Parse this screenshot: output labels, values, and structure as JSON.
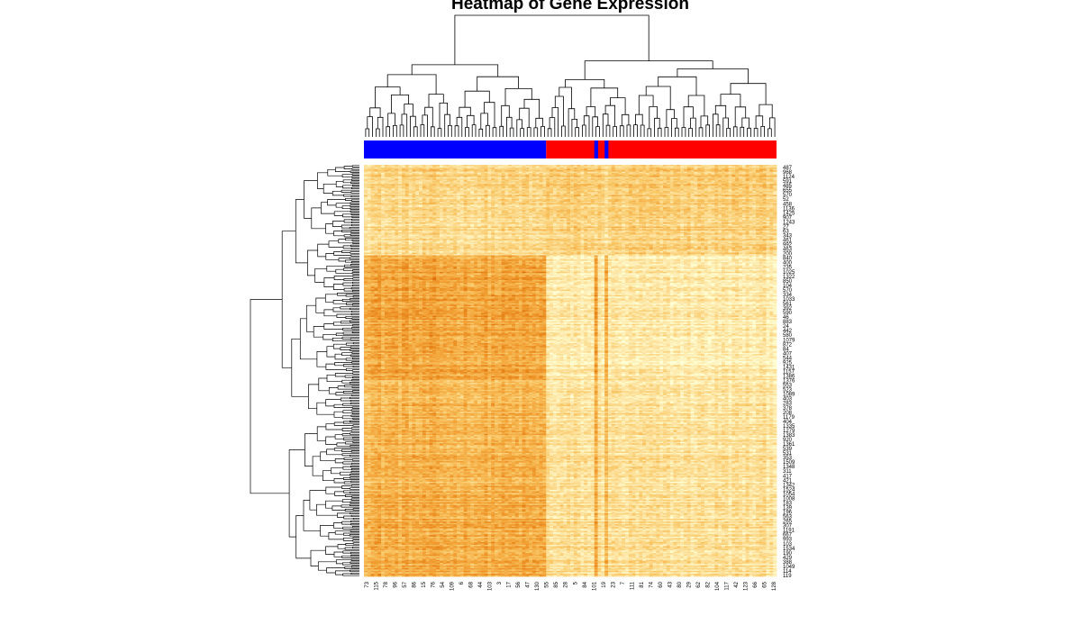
{
  "chart_data": {
    "type": "heatmap",
    "title": "Heatmap of Gene Expression",
    "column_labels": [
      "73",
      "115",
      "78",
      "96",
      "57",
      "86",
      "15",
      "76",
      "54",
      "109",
      "6",
      "68",
      "44",
      "103",
      "3",
      "17",
      "56",
      "47",
      "130",
      "55",
      "85",
      "28",
      "5",
      "84",
      "101",
      "19",
      "23",
      "7",
      "111",
      "81",
      "74",
      "60",
      "43",
      "80",
      "29",
      "62",
      "82",
      "104",
      "117",
      "42",
      "123",
      "66",
      "65",
      "128"
    ],
    "row_labels": [
      "487",
      "968",
      "1124",
      "591",
      "485",
      "655",
      "570",
      "52",
      "458",
      "1136",
      "1425",
      "907",
      "1243",
      "27",
      "63",
      "343",
      "461",
      "992",
      "463",
      "200",
      "840",
      "400",
      "235",
      "1025",
      "1322",
      "850",
      "104",
      "570",
      "334",
      "1033",
      "561",
      "392",
      "590",
      "46",
      "883",
      "24",
      "442",
      "580",
      "1079",
      "872",
      "84",
      "407",
      "544",
      "925",
      "1431",
      "1157",
      "1386",
      "1376",
      "553",
      "523",
      "1089",
      "403",
      "283",
      "378",
      "208",
      "1179",
      "404",
      "1335",
      "1279",
      "1383",
      "920",
      "1361",
      "539",
      "531",
      "353",
      "1509",
      "1348",
      "311",
      "417",
      "421",
      "1342",
      "1524",
      "1054",
      "1008",
      "183",
      "139",
      "196",
      "563",
      "265",
      "307",
      "1191",
      "667",
      "993",
      "103",
      "1534",
      "190",
      "429",
      "388",
      "1049",
      "114",
      "119"
    ],
    "column_group_colors": {
      "group_1": "#0000ff",
      "group_2": "#ff0000"
    },
    "column_group_split_fraction": 0.43,
    "color_scale": [
      "#ffffd5",
      "#fde6a6",
      "#f9c96a",
      "#f3a53a",
      "#e57e14",
      "#cc4c02"
    ],
    "row_dendrogram": true,
    "column_dendrogram": true
  }
}
